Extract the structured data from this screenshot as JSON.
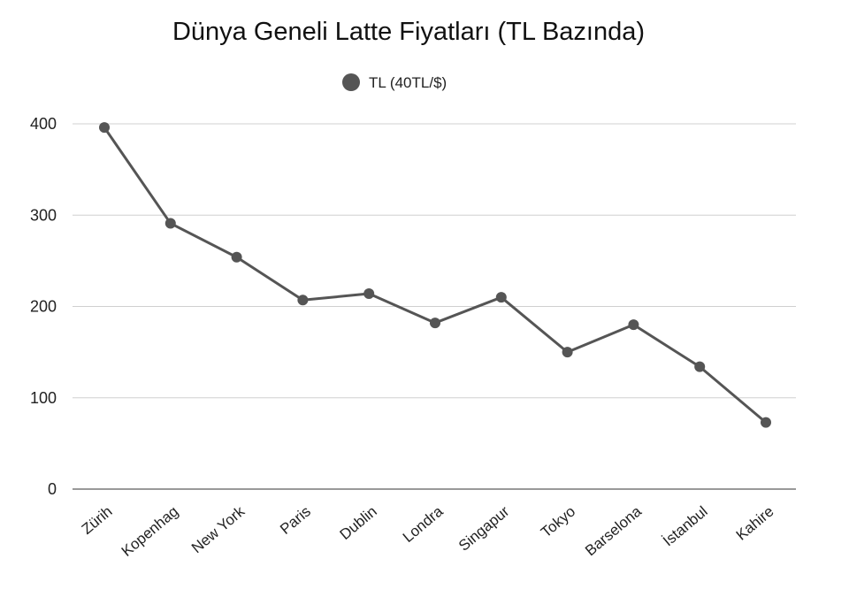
{
  "chart_data": {
    "type": "line",
    "title": "Dünya Geneli Latte Fiyatları (TL Bazında)",
    "xlabel": "",
    "ylabel": "",
    "categories": [
      "Zürih",
      "Kopenhag",
      "New York",
      "Paris",
      "Dublin",
      "Londra",
      "Singapur",
      "Tokyo",
      "Barselona",
      "İstanbul",
      "Kahire"
    ],
    "series": [
      {
        "name": "TL (40TL/$)",
        "color": "#555555",
        "values": [
          396,
          291,
          254,
          207,
          214,
          182,
          210,
          150,
          180,
          134,
          73
        ]
      }
    ],
    "ylim": [
      0,
      400
    ],
    "yticks": [
      0,
      100,
      200,
      300,
      400
    ],
    "grid": true,
    "legend_position": "top-center",
    "x_tick_rotation": "diagonal"
  }
}
